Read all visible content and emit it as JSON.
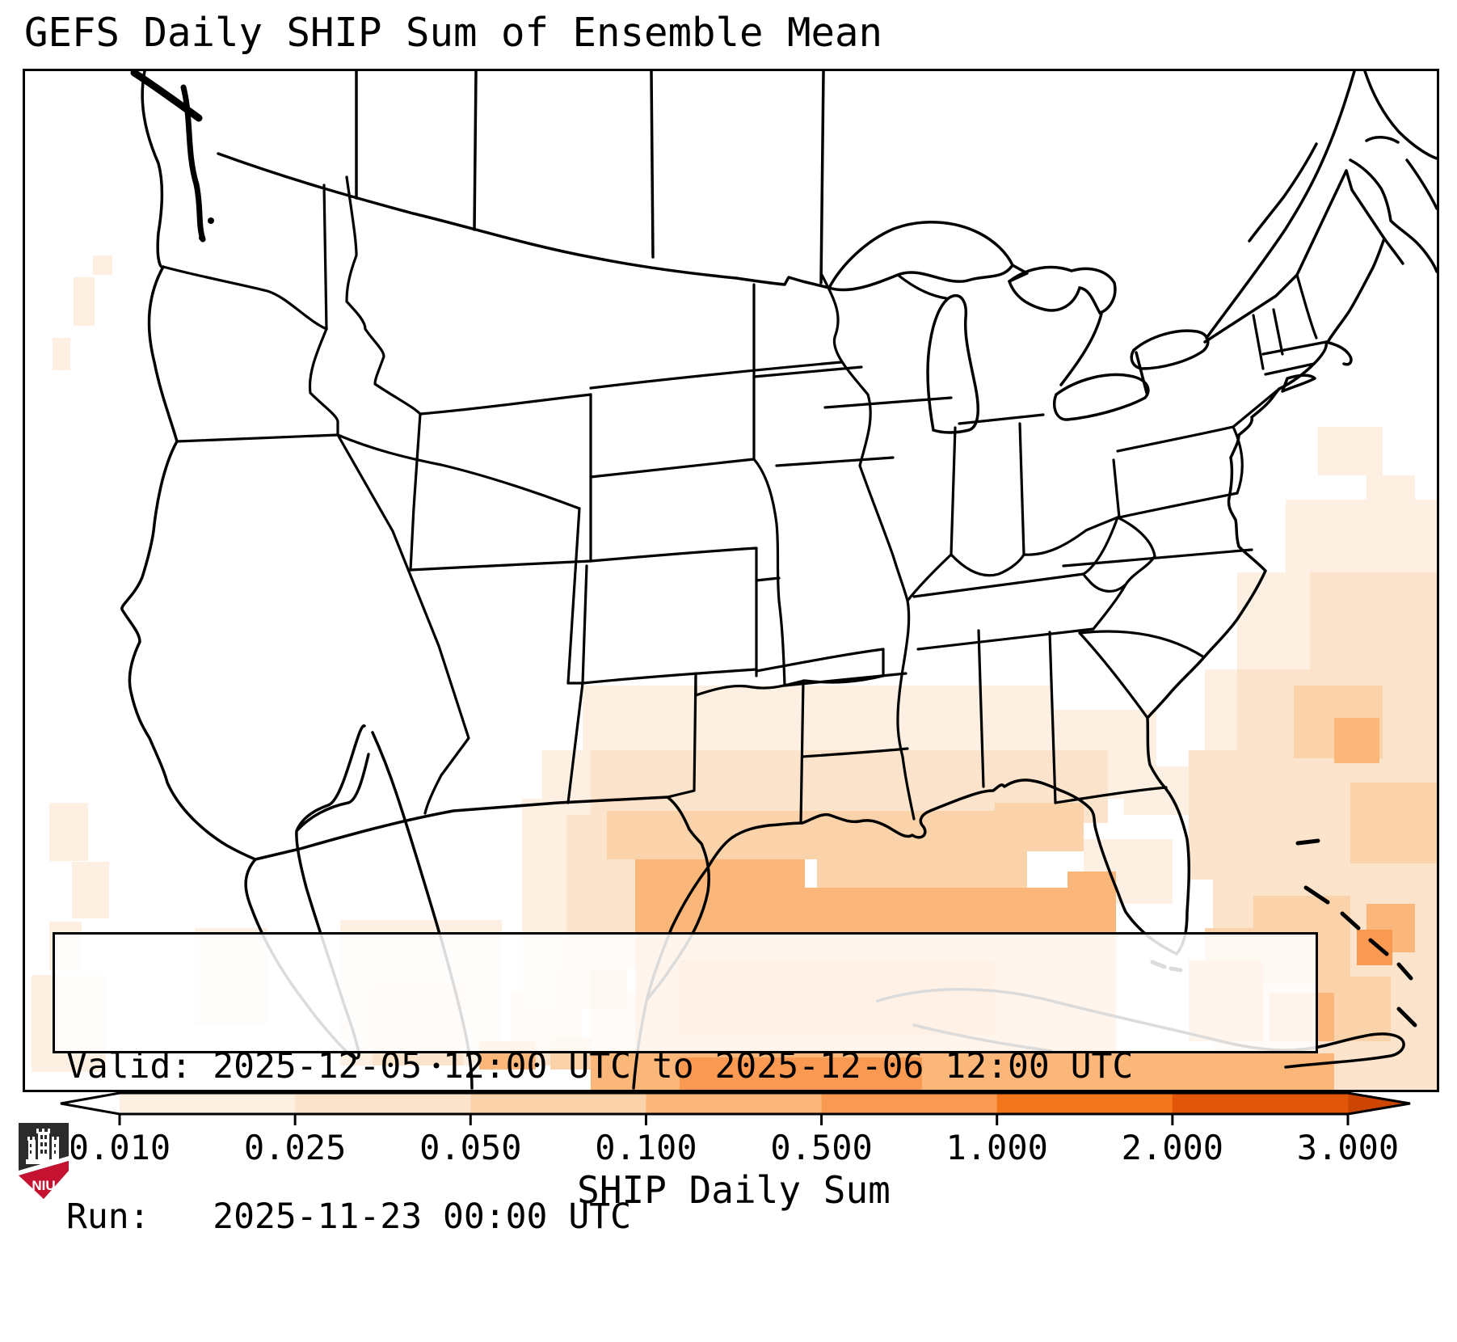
{
  "title": "GEFS Daily SHIP Sum of Ensemble Mean",
  "info_box": {
    "line1": "Valid: 2025-12-05 12:00 UTC to 2025-12-06 12:00 UTC",
    "line2": "Run:   2025-11-23 00:00 UTC"
  },
  "colorbar": {
    "label": "SHIP Daily Sum",
    "tick_labels": [
      "0.010",
      "0.025",
      "0.050",
      "0.100",
      "0.500",
      "1.000",
      "2.000",
      "3.000"
    ],
    "segment_colors": [
      "#fdf0e2",
      "#fbe3cc",
      "#fbd3ab",
      "#fbb679",
      "#fa9a52",
      "#f3761d",
      "#e25609"
    ],
    "under_color": "#ffffff",
    "over_color": "#cc4503",
    "outline_color": "#000000"
  },
  "logo": {
    "text": "NIU",
    "shield_dark": "#2b2b2b",
    "shield_red": "#c41230"
  },
  "map": {
    "background": "#ffffff",
    "line_color": "#000000",
    "heat_palette": [
      "#fdf0e2",
      "#fbe3cc",
      "#fbd3ab",
      "#fbb679",
      "#fa9a52",
      "#f3761d",
      "#e25609"
    ],
    "heat_cells": [
      [
        60,
        255,
        26,
        60,
        1
      ],
      [
        84,
        228,
        24,
        24,
        1
      ],
      [
        34,
        330,
        22,
        40,
        1
      ],
      [
        30,
        905,
        48,
        72,
        1
      ],
      [
        58,
        978,
        46,
        70,
        1
      ],
      [
        30,
        1052,
        40,
        60,
        1
      ],
      [
        8,
        1118,
        92,
        120,
        1
      ],
      [
        210,
        1060,
        90,
        120,
        1
      ],
      [
        390,
        1050,
        200,
        180,
        1
      ],
      [
        430,
        1130,
        112,
        100,
        2
      ],
      [
        600,
        1140,
        90,
        90,
        2
      ],
      [
        650,
        1195,
        72,
        40,
        3
      ],
      [
        562,
        1200,
        70,
        35,
        4
      ],
      [
        700,
        1140,
        120,
        90,
        2
      ],
      [
        758,
        1195,
        82,
        40,
        3
      ],
      [
        615,
        900,
        55,
        260,
        1
      ],
      [
        655,
        930,
        60,
        230,
        2
      ],
      [
        700,
        960,
        45,
        200,
        3
      ],
      [
        690,
        760,
        580,
        80,
        1
      ],
      [
        640,
        840,
        120,
        270,
        1
      ],
      [
        1270,
        790,
        130,
        110,
        1
      ],
      [
        1310,
        950,
        110,
        80,
        1
      ],
      [
        700,
        840,
        530,
        80,
        2
      ],
      [
        670,
        920,
        90,
        190,
        2
      ],
      [
        1210,
        840,
        130,
        90,
        2
      ],
      [
        720,
        915,
        480,
        60,
        3
      ],
      [
        980,
        960,
        260,
        50,
        3
      ],
      [
        1200,
        905,
        110,
        60,
        3
      ],
      [
        755,
        975,
        210,
        240,
        4
      ],
      [
        960,
        1010,
        330,
        205,
        4
      ],
      [
        1290,
        990,
        60,
        225,
        4
      ],
      [
        810,
        1100,
        390,
        92,
        5
      ],
      [
        700,
        1215,
        450,
        45,
        4
      ],
      [
        810,
        1220,
        300,
        40,
        5
      ],
      [
        1150,
        1215,
        470,
        45,
        4
      ],
      [
        1620,
        1215,
        127,
        45,
        2
      ],
      [
        1600,
        440,
        80,
        60,
        1
      ],
      [
        1660,
        500,
        60,
        50,
        1
      ],
      [
        1560,
        530,
        187,
        90,
        1
      ],
      [
        1500,
        620,
        247,
        120,
        1
      ],
      [
        1460,
        740,
        100,
        100,
        1
      ],
      [
        1360,
        860,
        80,
        60,
        1
      ],
      [
        1590,
        620,
        157,
        160,
        2
      ],
      [
        1500,
        740,
        247,
        260,
        2
      ],
      [
        1440,
        840,
        80,
        160,
        2
      ],
      [
        1470,
        1000,
        277,
        215,
        2
      ],
      [
        1570,
        760,
        110,
        90,
        3
      ],
      [
        1640,
        880,
        107,
        100,
        3
      ],
      [
        1520,
        1020,
        120,
        110,
        3
      ],
      [
        1600,
        1120,
        90,
        80,
        3
      ],
      [
        1460,
        1060,
        70,
        70,
        3
      ],
      [
        1620,
        800,
        56,
        56,
        4
      ],
      [
        1440,
        1100,
        92,
        100,
        4
      ],
      [
        1540,
        1140,
        80,
        60,
        4
      ],
      [
        1660,
        1030,
        60,
        60,
        4
      ],
      [
        1648,
        1062,
        44,
        44,
        5
      ]
    ]
  }
}
